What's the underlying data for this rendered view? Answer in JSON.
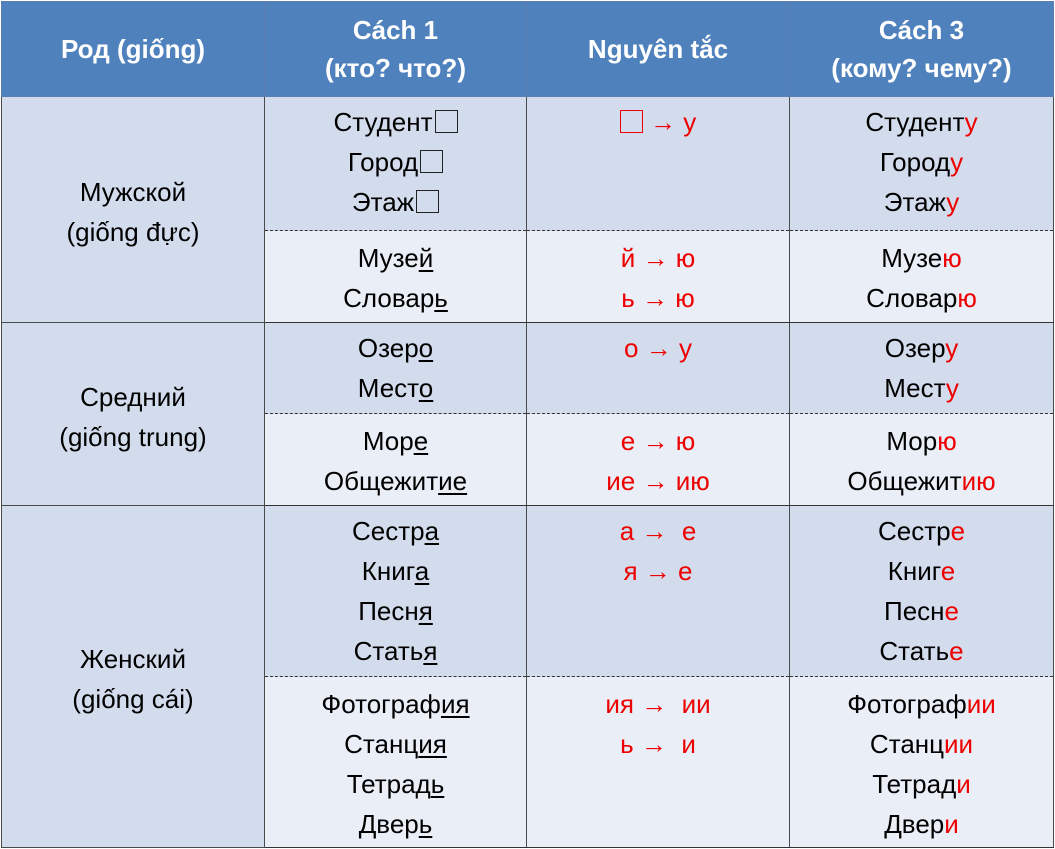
{
  "headers": [
    {
      "line1": "Род (giống)",
      "line2": ""
    },
    {
      "line1": "Cách 1",
      "line2": "(кто? что?)"
    },
    {
      "line1": "Nguyên tắc",
      "line2": ""
    },
    {
      "line1": "Cách 3",
      "line2": "(кому? чему?)"
    }
  ],
  "groups": [
    {
      "gender": {
        "ru": "Мужской",
        "vi": "(giống đực)"
      },
      "rows": [
        {
          "nominative": [
            {
              "stem": "Студент",
              "ending": "",
              "empty": true
            },
            {
              "stem": "Город",
              "ending": "",
              "empty": true
            },
            {
              "stem": "Этаж",
              "ending": "",
              "empty": true
            }
          ],
          "rules": [
            {
              "from": "",
              "empty": true,
              "arrow": "→",
              "to": "у"
            }
          ],
          "dative": [
            {
              "stem": "Студент",
              "ending": "у"
            },
            {
              "stem": "Город",
              "ending": "у"
            },
            {
              "stem": "Этаж",
              "ending": "у"
            }
          ]
        },
        {
          "nominative": [
            {
              "stem": "Музе",
              "ending": "й"
            },
            {
              "stem": "Словар",
              "ending": "ь"
            }
          ],
          "rules": [
            {
              "from": "й",
              "arrow": "→",
              "to": "ю"
            },
            {
              "from": "ь",
              "arrow": "→",
              "to": "ю"
            }
          ],
          "dative": [
            {
              "stem": "Музе",
              "ending": "ю"
            },
            {
              "stem": "Словар",
              "ending": "ю"
            }
          ]
        }
      ]
    },
    {
      "gender": {
        "ru": "Средний",
        "vi": "(giống trung)"
      },
      "rows": [
        {
          "nominative": [
            {
              "stem": "Озер",
              "ending": "о"
            },
            {
              "stem": "Мест",
              "ending": "о"
            }
          ],
          "rules": [
            {
              "from": "о",
              "arrow": "→",
              "to": "у"
            }
          ],
          "dative": [
            {
              "stem": "Озер",
              "ending": "у"
            },
            {
              "stem": "Мест",
              "ending": "у"
            }
          ]
        },
        {
          "nominative": [
            {
              "stem": "Мор",
              "ending": "е"
            },
            {
              "stem": "Общежит",
              "ending": "ие"
            }
          ],
          "rules": [
            {
              "from": "е",
              "arrow": "→",
              "to": "ю"
            },
            {
              "from": "ие",
              "arrow": "→",
              "to": "ию"
            }
          ],
          "dative": [
            {
              "stem": "Мор",
              "ending": "ю"
            },
            {
              "stem": "Общежит",
              "ending": "ию"
            }
          ]
        }
      ]
    },
    {
      "gender": {
        "ru": "Женский",
        "vi": "(giống cái)"
      },
      "rows": [
        {
          "nominative": [
            {
              "stem": "Сестр",
              "ending": "а"
            },
            {
              "stem": "Книг",
              "ending": "а"
            },
            {
              "stem": "Песн",
              "ending": "я"
            },
            {
              "stem": "Стать",
              "ending": "я"
            }
          ],
          "rules": [
            {
              "from": "а",
              "arrow": "→",
              "to": " е"
            },
            {
              "from": "я",
              "arrow": "→",
              "to": "е"
            }
          ],
          "dative": [
            {
              "stem": "Сестр",
              "ending": "е"
            },
            {
              "stem": "Книг",
              "ending": "е"
            },
            {
              "stem": "Песн",
              "ending": "е"
            },
            {
              "stem": "Стать",
              "ending": "е"
            }
          ]
        },
        {
          "nominative": [
            {
              "stem": "Фотограф",
              "ending": "ия"
            },
            {
              "stem": "Станц",
              "ending": "ия"
            },
            {
              "stem": "Тетрад",
              "ending": "ь"
            },
            {
              "stem": "Двер",
              "ending": "ь"
            }
          ],
          "rules": [
            {
              "from": "ия",
              "arrow": "→",
              "to": " ии"
            },
            {
              "from": "ь",
              "arrow": "→",
              "to": " и"
            }
          ],
          "dative": [
            {
              "stem": "Фотограф",
              "ending": "ии"
            },
            {
              "stem": "Станц",
              "ending": "ии"
            },
            {
              "stem": "Тетрад",
              "ending": "и"
            },
            {
              "stem": "Двер",
              "ending": "и"
            }
          ]
        }
      ]
    }
  ],
  "colors": {
    "header_bg": "#4f81bd",
    "band_dark": "#d3dcec",
    "band_light": "#e9eef7",
    "ending": "#ee0000"
  }
}
